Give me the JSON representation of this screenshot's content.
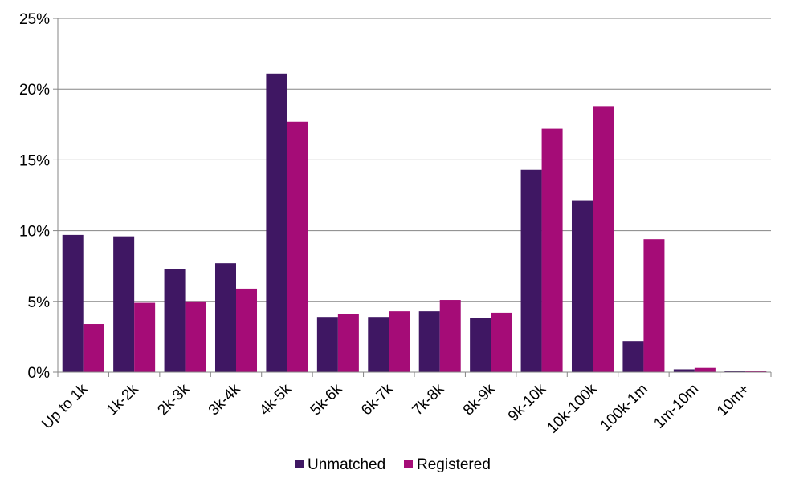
{
  "chart_data": {
    "type": "bar",
    "categories": [
      "Up to 1k",
      "1k-2k",
      "2k-3k",
      "3k-4k",
      "4k-5k",
      "5k-6k",
      "6k-7k",
      "7k-8k",
      "8k-9k",
      "9k-10k",
      "10k-100k",
      "100k-1m",
      "1m-10m",
      "10m+"
    ],
    "series": [
      {
        "name": "Unmatched",
        "color": "#3F1763",
        "values": [
          9.7,
          9.6,
          7.3,
          7.7,
          21.1,
          3.9,
          3.9,
          4.3,
          3.8,
          14.3,
          12.1,
          2.2,
          0.2,
          0.1
        ]
      },
      {
        "name": "Registered",
        "color": "#A50C77",
        "values": [
          3.4,
          4.9,
          5.0,
          5.9,
          17.7,
          4.1,
          4.3,
          5.1,
          4.2,
          17.2,
          18.8,
          9.4,
          0.3,
          0.1
        ]
      }
    ],
    "yticks": [
      "0%",
      "5%",
      "10%",
      "15%",
      "20%",
      "25%"
    ],
    "ylim": [
      0,
      25
    ],
    "y_unit": "%",
    "grid": true,
    "legend_position": "bottom",
    "title": "",
    "xlabel": "",
    "ylabel": ""
  }
}
